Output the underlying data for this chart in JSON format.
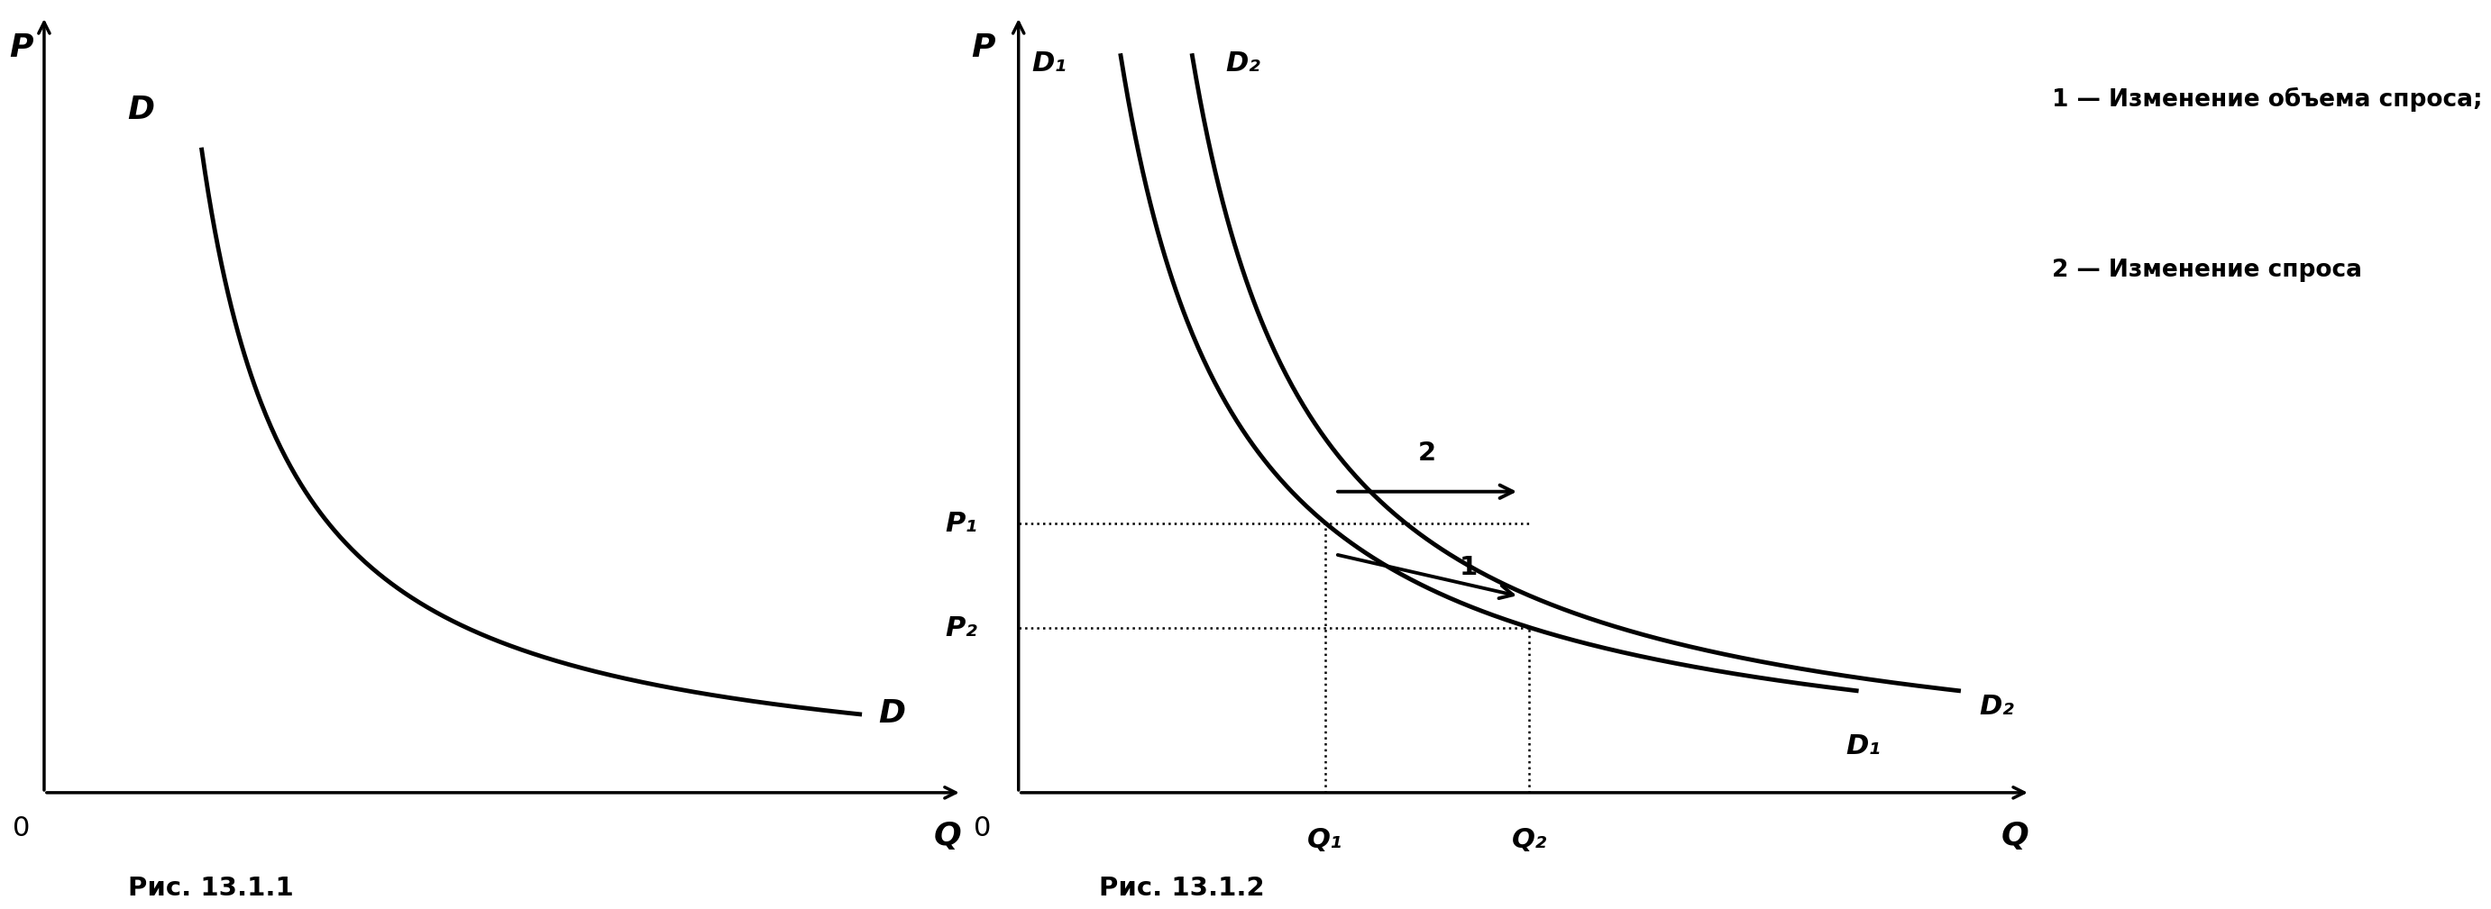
{
  "fig_width": 26.36,
  "fig_height": 10.88,
  "background_color": "#ffffff",
  "fig1_caption": "Рис. 13.1.1",
  "fig2_caption": "Рис. 13.1.2",
  "legend_line1": "1 — Изменение объема спроса;",
  "legend_line2": "2 — Изменение спроса",
  "label_P": "P",
  "label_Q": "Q",
  "label_D": "D",
  "label_D1_top": "D₁",
  "label_D2_top": "D₂",
  "label_D1_bot": "D₁",
  "label_D2_bot": "D₂",
  "label_P1": "P₁",
  "label_P2": "P₂",
  "label_Q1": "Q₁",
  "label_Q2": "Q₂",
  "label_0": "0",
  "label_arrow1": "1",
  "label_arrow2": "2",
  "curve_color": "#000000",
  "curve_linewidth": 3.5,
  "axis_linewidth": 2.5,
  "dotted_linewidth": 1.8,
  "p1_val": 0.62,
  "p2_val": 0.38,
  "q1_val": 0.3,
  "q2_val": 0.5
}
